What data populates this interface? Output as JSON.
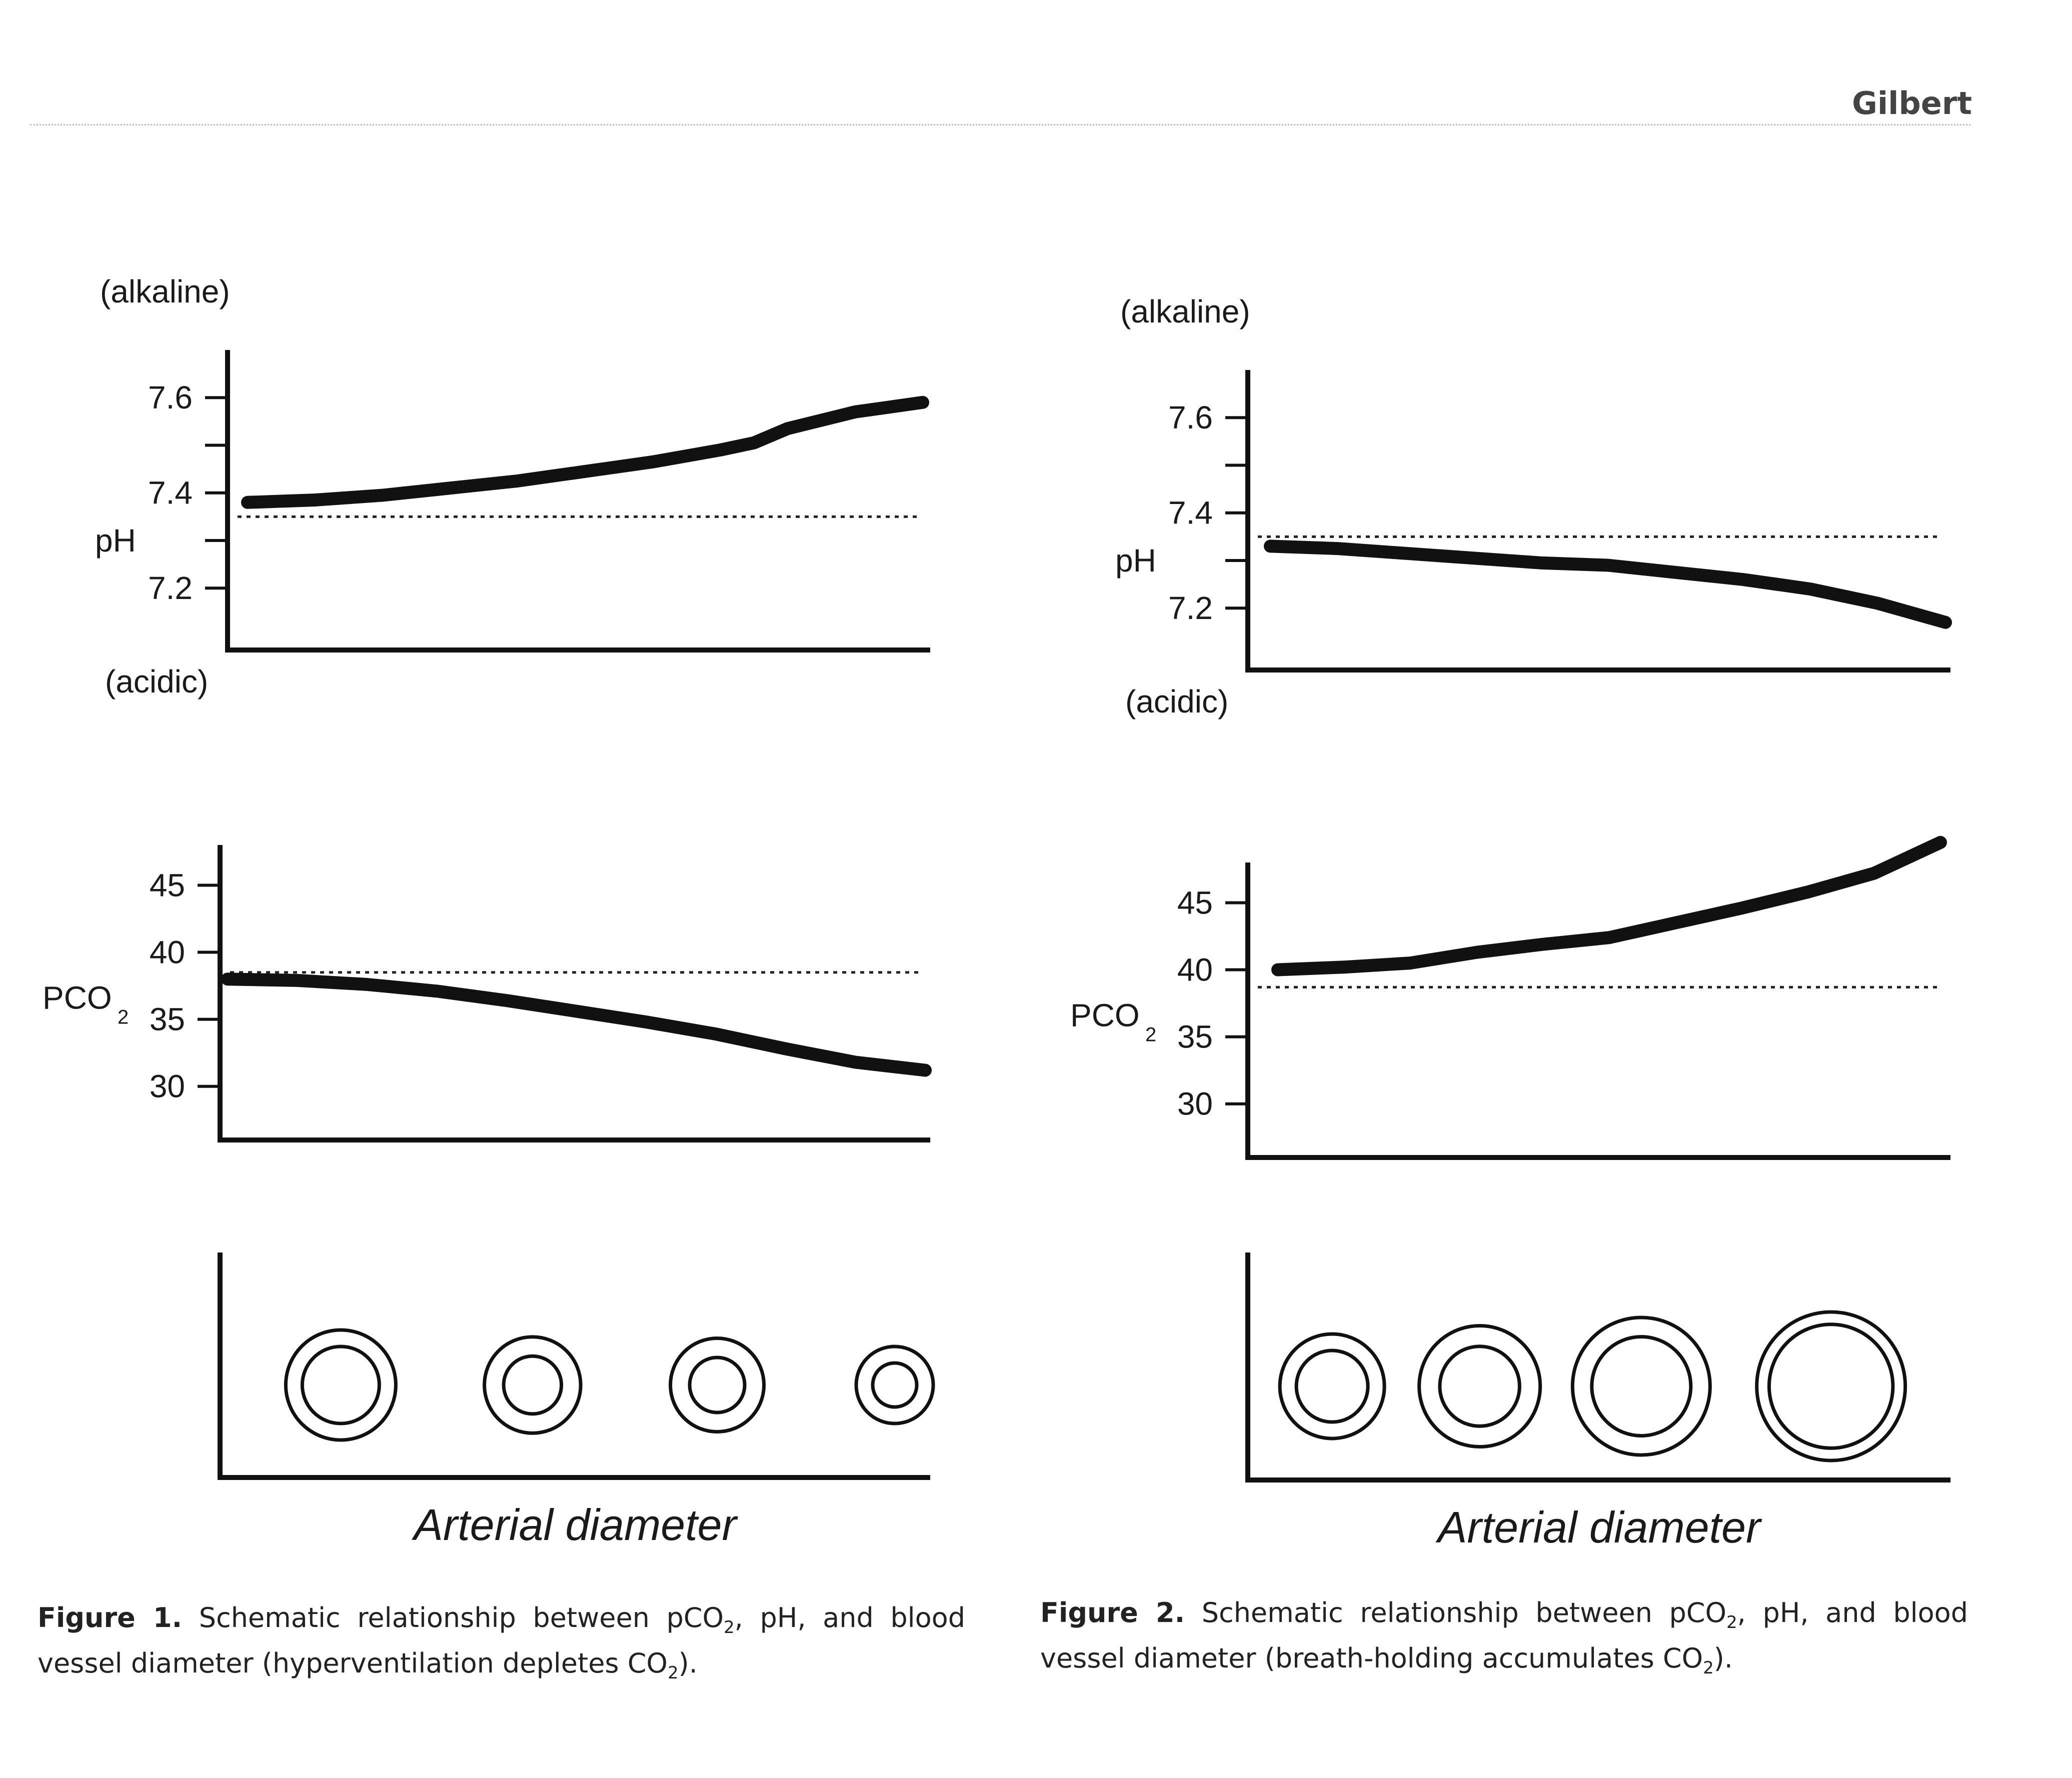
{
  "header": {
    "author": "Gilbert"
  },
  "figures": [
    {
      "caption": {
        "label": "Figure 1.",
        "text_a": " Schematic relationship between pCO",
        "sub_a": "2",
        "text_b": ", pH, and blood vessel diameter (hyperventilation depletes CO",
        "sub_b": "2",
        "text_c": ")."
      }
    },
    {
      "caption": {
        "label": "Figure 2.",
        "text_a": " Schematic relationship between pCO",
        "sub_a": "2",
        "text_b": ", pH, and blood vessel diameter (breath-holding accumulates CO",
        "sub_b": "2",
        "text_c": ")."
      }
    }
  ],
  "chart_data": [
    {
      "figure": 1,
      "panel": "pH",
      "type": "line",
      "ylabel": "pH",
      "top_note": "(alkaline)",
      "bottom_note": "(acidic)",
      "yticks": [
        7.2,
        7.4,
        7.6
      ],
      "ylim": [
        7.07,
        7.7
      ],
      "reference_line": 7.35,
      "x": [
        0,
        10,
        20,
        30,
        40,
        50,
        60,
        70,
        75,
        80,
        90,
        100
      ],
      "y": [
        7.38,
        7.385,
        7.395,
        7.41,
        7.425,
        7.445,
        7.465,
        7.49,
        7.505,
        7.535,
        7.57,
        7.59
      ]
    },
    {
      "figure": 1,
      "panel": "PCO2",
      "type": "line",
      "ylabel": "PCO",
      "ylabel_sub": "2",
      "yticks": [
        30,
        35,
        40,
        45
      ],
      "ylim": [
        26,
        48
      ],
      "reference_line": 38.5,
      "x": [
        0,
        10,
        20,
        30,
        40,
        50,
        60,
        70,
        80,
        90,
        100
      ],
      "y": [
        38,
        37.9,
        37.6,
        37.1,
        36.4,
        35.6,
        34.8,
        33.9,
        32.8,
        31.8,
        31.2
      ]
    },
    {
      "figure": 1,
      "panel": "diameter",
      "type": "scatter",
      "xlabel": "Arterial diameter",
      "vessels": [
        {
          "x": 17,
          "outer": 40,
          "inner": 28
        },
        {
          "x": 44,
          "outer": 35,
          "inner": 21
        },
        {
          "x": 70,
          "outer": 34,
          "inner": 20
        },
        {
          "x": 95,
          "outer": 28,
          "inner": 16
        }
      ]
    },
    {
      "figure": 2,
      "panel": "pH",
      "type": "line",
      "ylabel": "pH",
      "top_note": "(alkaline)",
      "bottom_note": "(acidic)",
      "yticks": [
        7.2,
        7.4,
        7.6
      ],
      "ylim": [
        7.07,
        7.7
      ],
      "reference_line": 7.35,
      "x": [
        0,
        10,
        20,
        30,
        40,
        50,
        60,
        70,
        80,
        90,
        100
      ],
      "y": [
        7.33,
        7.325,
        7.315,
        7.305,
        7.295,
        7.29,
        7.275,
        7.26,
        7.24,
        7.21,
        7.17
      ]
    },
    {
      "figure": 2,
      "panel": "PCO2",
      "type": "line",
      "ylabel": "PCO",
      "ylabel_sub": "2",
      "yticks": [
        30,
        35,
        40,
        45
      ],
      "ylim": [
        26,
        48
      ],
      "reference_line": 38.7,
      "x": [
        0,
        10,
        20,
        30,
        40,
        50,
        60,
        70,
        80,
        90,
        100
      ],
      "y": [
        40,
        40.2,
        40.5,
        41.3,
        41.9,
        42.4,
        43.5,
        44.6,
        45.8,
        47.2,
        49.5
      ]
    },
    {
      "figure": 2,
      "panel": "diameter",
      "type": "scatter",
      "xlabel": "Arterial diameter",
      "vessels": [
        {
          "x": 12,
          "outer": 38,
          "inner": 26
        },
        {
          "x": 33,
          "outer": 44,
          "inner": 29
        },
        {
          "x": 56,
          "outer": 50,
          "inner": 36
        },
        {
          "x": 83,
          "outer": 54,
          "inner": 45
        }
      ]
    }
  ]
}
